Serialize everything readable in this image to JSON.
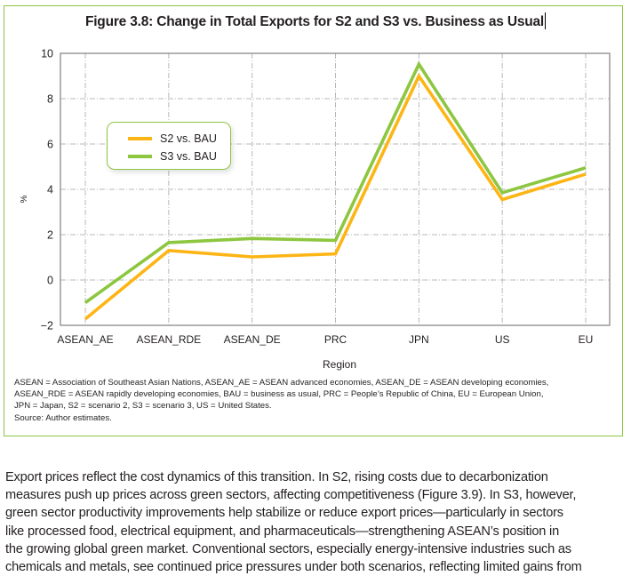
{
  "figure": {
    "title": "Figure 3.8: Change in Total Exports for S2 and S3 vs. Business as Usual",
    "border_color": "#8dc63f"
  },
  "chart_data": {
    "type": "line",
    "title": "Figure 3.8: Change in Total Exports for S2 and S3 vs. Business as Usual",
    "xlabel": "Region",
    "ylabel": "%",
    "categories": [
      "ASEAN_AE",
      "ASEAN_RDE",
      "ASEAN_DE",
      "PRC",
      "JPN",
      "US",
      "EU"
    ],
    "ylim": [
      -2,
      10
    ],
    "yticks": [
      -2,
      0,
      2,
      4,
      6,
      8,
      10
    ],
    "ytick_labels": [
      "−2",
      "0",
      "2",
      "4",
      "6",
      "8",
      "10"
    ],
    "grid": true,
    "legend_position": "upper-left",
    "series": [
      {
        "name": "S2 vs. BAU",
        "color": "#fdb515",
        "values": [
          -1.72,
          1.3,
          1.02,
          1.15,
          9.0,
          3.55,
          4.67
        ]
      },
      {
        "name": "S3 vs. BAU",
        "color": "#8dc63f",
        "values": [
          -1.0,
          1.65,
          1.83,
          1.75,
          9.52,
          3.85,
          4.95
        ]
      }
    ]
  },
  "notes": {
    "lines": [
      "ASEAN = Association of Southeast Asian Nations, ASEAN_AE = ASEAN advanced economies, ASEAN_DE = ASEAN developing economies,",
      "ASEAN_RDE = ASEAN rapidly developing economies, BAU = business as usual, PRC = People’s Republic of China, EU = European Union,",
      "JPN = Japan, S2 = scenario 2, S3 = scenario 3, US = United States.",
      "Source: Author estimates."
    ]
  },
  "body": {
    "lines": [
      "Export prices reflect the cost dynamics of this transition. In S2, rising costs due to decarbonization",
      "measures push up prices across green sectors, affecting competitiveness (Figure 3.9). In S3, however,",
      "green sector productivity improvements help stabilize or reduce export prices—particularly in sectors",
      "like processed food, electrical equipment, and pharmaceuticals—strengthening ASEAN’s position in",
      "the growing global green market. Conventional sectors, especially energy-intensive industries such as",
      "chemicals and metals, see continued price pressures under both scenarios, reflecting limited gains from"
    ]
  }
}
